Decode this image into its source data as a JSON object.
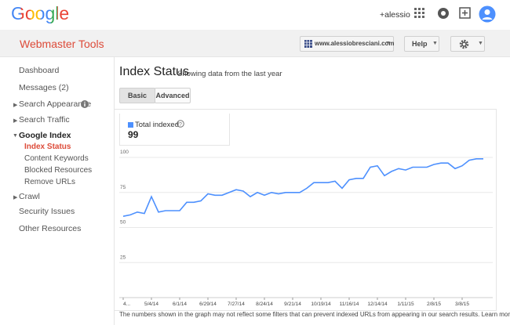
{
  "header": {
    "logo": "Google",
    "user": "+alessio"
  },
  "toolbar": {
    "product": "Webmaster Tools",
    "site": "www.alessiobresciani.com",
    "help": "Help"
  },
  "nav": {
    "items": [
      "Dashboard",
      "Messages (2)",
      "Search Appearance",
      "Search Traffic",
      "Google Index",
      "Index Status",
      "Content Keywords",
      "Blocked Resources",
      "Remove URLs",
      "Crawl",
      "Security Issues",
      "Other Resources"
    ]
  },
  "page": {
    "title": "Index Status",
    "subtitle": "Showing data from the last year",
    "tabs": [
      "Basic",
      "Advanced"
    ]
  },
  "chart_data": {
    "type": "line",
    "series": [
      {
        "name": "Total indexed",
        "color": "#4d90fe",
        "total": "99",
        "values": [
          58,
          59,
          61,
          60,
          72,
          61,
          62,
          62,
          62,
          68,
          68,
          69,
          74,
          73,
          73,
          75,
          77,
          76,
          72,
          75,
          73,
          75,
          74,
          75,
          75,
          75,
          78,
          82,
          82,
          82,
          83,
          78,
          84,
          85,
          85,
          93,
          94,
          87,
          90,
          92,
          91,
          93,
          93,
          93,
          95,
          96,
          96,
          92,
          94,
          98,
          99,
          99
        ]
      }
    ],
    "categories": [
      "4...",
      null,
      null,
      null,
      "5/4/14",
      null,
      null,
      null,
      "6/1/14",
      null,
      null,
      null,
      "6/29/14",
      null,
      null,
      null,
      "7/27/14",
      null,
      null,
      null,
      "8/24/14",
      null,
      null,
      null,
      "9/21/14",
      null,
      null,
      null,
      "10/19/14",
      null,
      null,
      null,
      "11/16/14",
      null,
      null,
      null,
      "12/14/14",
      null,
      null,
      null,
      "1/11/15",
      null,
      null,
      null,
      "2/8/15",
      null,
      null,
      null,
      "3/8/15",
      null,
      null,
      null
    ],
    "ylim": [
      0,
      100
    ],
    "yticks": [
      25,
      50,
      75,
      100
    ],
    "grid": true
  },
  "footer": {
    "note": "The numbers shown in the graph may not reflect some filters that can prevent indexed URLs from appearing in our search results. Learn more."
  }
}
